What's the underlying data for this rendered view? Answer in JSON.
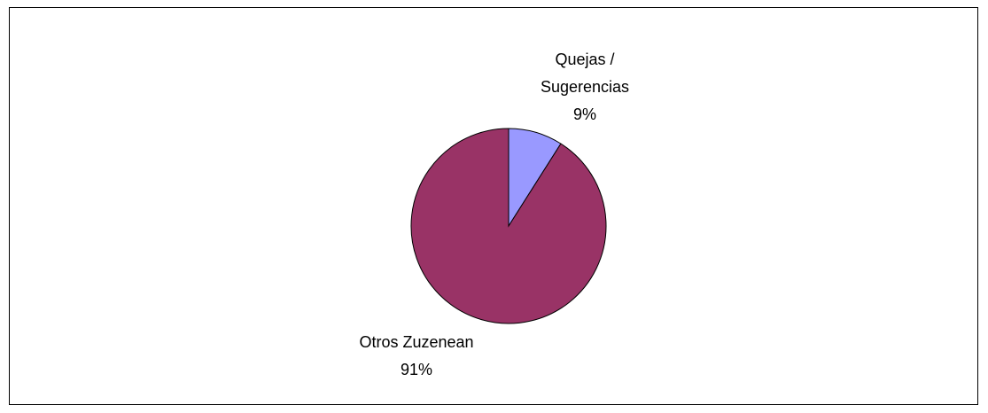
{
  "chart_data": {
    "type": "pie",
    "categories": [
      "Quejas / Sugerencias",
      "Otros Zuzenean"
    ],
    "values": [
      9,
      91
    ],
    "value_labels": [
      "9%",
      "91%"
    ],
    "colors": [
      "#9999ff",
      "#993366"
    ]
  }
}
